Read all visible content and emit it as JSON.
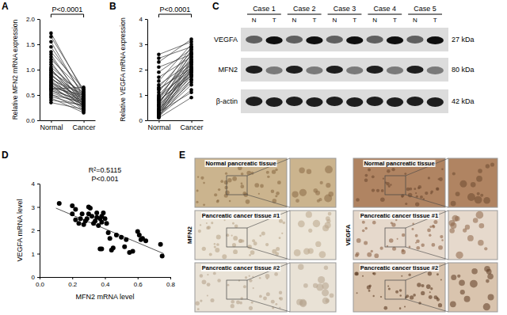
{
  "panel_labels": [
    "A",
    "B",
    "C",
    "D",
    "E"
  ],
  "chart_data": [
    {
      "type": "paired",
      "categories": [
        "Normal",
        "Cancer"
      ],
      "y_label": "Relative MFN2 mRNA expression",
      "ylim": [
        0,
        2
      ],
      "yticks": [
        {
          "value": 0,
          "label": "0.0"
        },
        {
          "value": 0.5,
          "label": "0.5"
        },
        {
          "value": 1,
          "label": "1.0"
        },
        {
          "value": 1.5,
          "label": "1.5"
        },
        {
          "value": 2,
          "label": "2.0"
        }
      ],
      "annotations": [
        "P<0.0001"
      ],
      "color": "#000000",
      "values": [
        [
          1.72,
          0.55
        ],
        [
          1.65,
          0.6
        ],
        [
          1.55,
          0.45
        ],
        [
          1.45,
          0.5
        ],
        [
          1.35,
          0.62
        ],
        [
          1.3,
          0.35
        ],
        [
          1.25,
          0.4
        ],
        [
          1.2,
          0.58
        ],
        [
          1.15,
          0.3
        ],
        [
          1.1,
          0.45
        ],
        [
          1.05,
          0.5
        ],
        [
          1.02,
          0.25
        ],
        [
          1.0,
          0.38
        ],
        [
          0.98,
          0.42
        ],
        [
          0.95,
          0.55
        ],
        [
          0.92,
          0.3
        ],
        [
          0.9,
          0.35
        ],
        [
          0.88,
          0.48
        ],
        [
          0.85,
          0.22
        ],
        [
          0.83,
          0.4
        ],
        [
          0.8,
          0.52
        ],
        [
          0.78,
          0.33
        ],
        [
          0.76,
          0.28
        ],
        [
          0.74,
          0.45
        ],
        [
          0.72,
          0.37
        ],
        [
          0.7,
          0.2
        ],
        [
          0.68,
          0.42
        ],
        [
          0.66,
          0.3
        ],
        [
          0.64,
          0.5
        ],
        [
          0.62,
          0.35
        ],
        [
          0.6,
          0.25
        ],
        [
          0.58,
          0.4
        ],
        [
          0.55,
          0.32
        ],
        [
          0.52,
          0.18
        ],
        [
          0.5,
          0.36
        ],
        [
          0.47,
          0.28
        ],
        [
          0.44,
          0.15
        ],
        [
          0.4,
          0.3
        ],
        [
          0.35,
          0.22
        ],
        [
          0.62,
          0.65
        ]
      ]
    },
    {
      "type": "paired",
      "categories": [
        "Normal",
        "Cancer"
      ],
      "y_label": "Relative VEGFA mRNA expression",
      "ylim": [
        0,
        4
      ],
      "yticks": [
        0,
        1,
        2,
        3,
        4
      ],
      "annotations": [
        "P<0.0001"
      ],
      "color": "#000000",
      "values": [
        [
          2.6,
          3.1
        ],
        [
          2.45,
          2.9
        ],
        [
          2.3,
          3.2
        ],
        [
          2.1,
          2.6
        ],
        [
          1.9,
          2.8
        ],
        [
          1.7,
          2.5
        ],
        [
          1.55,
          3.0
        ],
        [
          1.4,
          2.3
        ],
        [
          1.3,
          2.7
        ],
        [
          1.2,
          2.2
        ],
        [
          1.1,
          2.9
        ],
        [
          1.0,
          2.4
        ],
        [
          0.95,
          2.0
        ],
        [
          0.9,
          2.6
        ],
        [
          0.85,
          2.1
        ],
        [
          0.8,
          2.8
        ],
        [
          0.75,
          1.9
        ],
        [
          0.7,
          2.3
        ],
        [
          0.65,
          2.5
        ],
        [
          0.6,
          1.8
        ],
        [
          0.55,
          2.2
        ],
        [
          0.5,
          2.0
        ],
        [
          0.45,
          1.7
        ],
        [
          0.4,
          2.4
        ],
        [
          0.38,
          1.6
        ],
        [
          0.35,
          2.1
        ],
        [
          0.3,
          1.5
        ],
        [
          0.28,
          1.9
        ],
        [
          0.25,
          2.3
        ],
        [
          0.22,
          1.4
        ],
        [
          0.2,
          1.8
        ],
        [
          0.18,
          1.2
        ],
        [
          0.15,
          2.0
        ],
        [
          0.12,
          1.6
        ],
        [
          0.1,
          0.9
        ],
        [
          0.33,
          1.1
        ],
        [
          1.25,
          2.05
        ],
        [
          0.6,
          2.65
        ],
        [
          0.42,
          1.95
        ],
        [
          0.8,
          1.75
        ]
      ]
    },
    {
      "type": "scatter",
      "x_label": "MFN2 mRNA level",
      "y_label": "VEGFA mRNA level",
      "xlim": [
        0,
        0.8
      ],
      "xticks": [
        {
          "value": 0,
          "label": "0.0"
        },
        {
          "value": 0.2,
          "label": "0.2"
        },
        {
          "value": 0.4,
          "label": "0.4"
        },
        {
          "value": 0.6,
          "label": "0.6"
        },
        {
          "value": 0.8,
          "label": "0.8"
        }
      ],
      "ylim": [
        0,
        4
      ],
      "yticks": [
        0,
        1,
        2,
        3,
        4
      ],
      "annotations": [
        "R²=0.5115",
        "P<0.001"
      ],
      "color": "#000000",
      "x": [
        0.12,
        0.2,
        0.22,
        0.2,
        0.22,
        0.24,
        0.25,
        0.26,
        0.27,
        0.28,
        0.29,
        0.3,
        0.31,
        0.3,
        0.32,
        0.33,
        0.34,
        0.35,
        0.35,
        0.36,
        0.37,
        0.38,
        0.38,
        0.39,
        0.4,
        0.41,
        0.42,
        0.37,
        0.38,
        0.43,
        0.44,
        0.45,
        0.47,
        0.5,
        0.52,
        0.53,
        0.55,
        0.57,
        0.6,
        0.61,
        0.62,
        0.63,
        0.75,
        0.74,
        0.65
      ],
      "values": [
        3.15,
        3.05,
        2.9,
        2.7,
        2.45,
        2.3,
        2.5,
        2.7,
        2.25,
        2.4,
        2.5,
        3.0,
        2.95,
        2.7,
        2.6,
        2.3,
        2.4,
        2.75,
        2.55,
        2.2,
        2.5,
        2.35,
        2.6,
        2.75,
        2.5,
        2.3,
        1.9,
        1.2,
        1.2,
        1.65,
        1.15,
        1.25,
        1.8,
        1.7,
        1.3,
        1.6,
        1.05,
        1.1,
        1.95,
        1.8,
        1.6,
        1.65,
        0.9,
        1.4,
        1.55
      ],
      "trend_line": {
        "x": [
          0.1,
          0.76
        ],
        "y": [
          2.95,
          1.0
        ]
      }
    }
  ],
  "western_blot": {
    "cases": [
      "Case 1",
      "Case 2",
      "Case 3",
      "Case 4",
      "Case 5"
    ],
    "lanes": [
      "N",
      "T"
    ],
    "proteins": [
      {
        "name": "VEGFA",
        "size": "27 kDa"
      },
      {
        "name": "MFN2",
        "size": "80 kDa"
      },
      {
        "name": "β-actin",
        "size": "42 kDa"
      }
    ]
  },
  "ihc": {
    "stains": [
      "MFN2",
      "VEGFA"
    ],
    "tissues": [
      "Normal pancreatic tissue",
      "Pancreatic cancer tissue #1",
      "Pancreatic cancer tissue #2"
    ]
  }
}
